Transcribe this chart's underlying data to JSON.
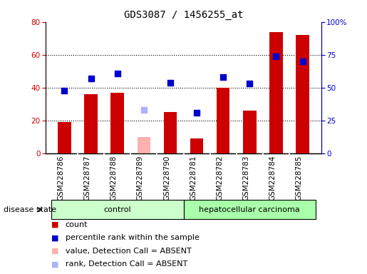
{
  "title": "GDS3087 / 1456255_at",
  "samples": [
    "GSM228786",
    "GSM228787",
    "GSM228788",
    "GSM228789",
    "GSM228790",
    "GSM228781",
    "GSM228782",
    "GSM228783",
    "GSM228784",
    "GSM228785"
  ],
  "count_values": [
    19,
    36,
    37,
    0,
    25,
    9,
    40,
    26,
    74,
    72
  ],
  "count_absent": [
    false,
    false,
    false,
    true,
    false,
    false,
    false,
    false,
    false,
    false
  ],
  "count_absent_values": [
    0,
    0,
    0,
    10,
    0,
    0,
    0,
    0,
    0,
    0
  ],
  "percentile_values": [
    48,
    57,
    61,
    0,
    54,
    31,
    58,
    53,
    74,
    70
  ],
  "percentile_absent": [
    false,
    false,
    false,
    true,
    false,
    false,
    false,
    false,
    false,
    false
  ],
  "percentile_absent_values": [
    0,
    0,
    0,
    33,
    0,
    0,
    0,
    0,
    0,
    0
  ],
  "bar_color": "#cc0000",
  "bar_absent_color": "#ffb0b0",
  "dot_color": "#0000cc",
  "dot_absent_color": "#b0b0ff",
  "left_ylim": [
    0,
    80
  ],
  "right_ylim": [
    0,
    100
  ],
  "left_yticks": [
    0,
    20,
    40,
    60,
    80
  ],
  "right_yticks": [
    0,
    25,
    50,
    75,
    100
  ],
  "right_yticklabels": [
    "0",
    "25",
    "50",
    "75",
    "100%"
  ],
  "groups": [
    {
      "label": "control",
      "start": 0,
      "end": 4,
      "color": "#ccffcc"
    },
    {
      "label": "hepatocellular carcinoma",
      "start": 5,
      "end": 9,
      "color": "#aaffaa"
    }
  ],
  "disease_state_label": "disease state",
  "legend_items": [
    {
      "label": "count",
      "color": "#cc0000"
    },
    {
      "label": "percentile rank within the sample",
      "color": "#0000cc"
    },
    {
      "label": "value, Detection Call = ABSENT",
      "color": "#ffb0b0"
    },
    {
      "label": "rank, Detection Call = ABSENT",
      "color": "#b0b0ff"
    }
  ],
  "bar_width": 0.5,
  "dot_size": 35,
  "title_fontsize": 10,
  "tick_fontsize": 7.5,
  "label_fontsize": 8,
  "legend_fontsize": 8,
  "xtick_bg_color": "#cccccc",
  "plot_bg_color": "#ffffff"
}
